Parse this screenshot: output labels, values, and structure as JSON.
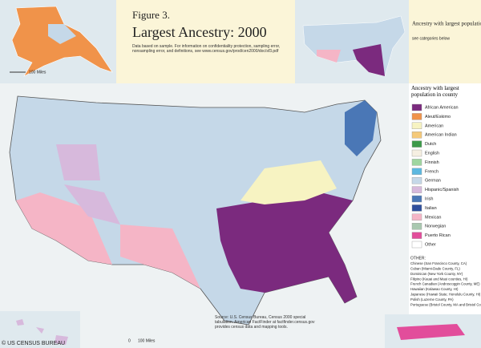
{
  "header": {
    "figure": "Figure 3.",
    "title": "Largest Ancestry: 2000",
    "note": "Data based on sample. For information on confidentiality protection, sampling error, nonsampling error, and definitions, see www.census.gov/prod/cen2000/doc/sf3.pdf"
  },
  "state_inset": {
    "title": "Ancestry with largest population in state",
    "subtitle": "see categories below"
  },
  "legend": {
    "title": "Ancestry with largest population in county",
    "items": [
      {
        "label": "African American",
        "color": "#7b2a7e"
      },
      {
        "label": "Aleut/Eskimo",
        "color": "#f0934a"
      },
      {
        "label": "American",
        "color": "#f7f3c2"
      },
      {
        "label": "American Indian",
        "color": "#f5c97a"
      },
      {
        "label": "Dutch",
        "color": "#3d9a4a"
      },
      {
        "label": "English",
        "color": "#f6efe2"
      },
      {
        "label": "Finnish",
        "color": "#9fd6a0"
      },
      {
        "label": "French",
        "color": "#5cb8e0"
      },
      {
        "label": "German",
        "color": "#c5d8e8"
      },
      {
        "label": "Hispanic/Spanish",
        "color": "#d7b9dc"
      },
      {
        "label": "Irish",
        "color": "#4a77b6"
      },
      {
        "label": "Italian",
        "color": "#2f4f9c"
      },
      {
        "label": "Mexican",
        "color": "#f5b5c6"
      },
      {
        "label": "Norwegian",
        "color": "#a9c8b0"
      },
      {
        "label": "Puerto Rican",
        "color": "#e24d9b"
      },
      {
        "label": "Other",
        "color": "#ffffff"
      }
    ]
  },
  "other": {
    "heading": "OTHER:",
    "items": [
      "Chinese (San Francisco County, CA)",
      "Cuban (Miami-Dade County, FL)",
      "Dominican (New York County, NY)",
      "Filipino (Kauai and Maui counties, HI)",
      "French Canadian (Androscoggin County, ME)",
      "Hawaiian (Kalawao County, HI)",
      "Japanese (Hawaii State; Honolulu County, HI)",
      "Polish (Luzerne County, PA)",
      "Portuguese (Bristol County, MA and Bristol County, RI)"
    ]
  },
  "source": "Source: U.S. Census Bureau, Census 2000 special tabulation. American FactFinder at factfinder.census.gov provides census data and mapping tools.",
  "scale": {
    "zero": "0",
    "miles": "100 Miles"
  },
  "watermark": "© US CENSUS BUREAU"
}
